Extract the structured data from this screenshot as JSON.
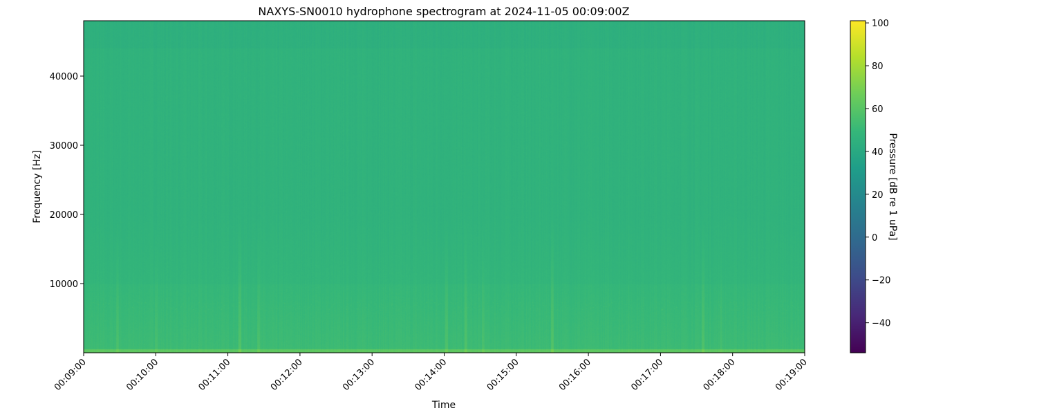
{
  "chart_data": {
    "type": "heatmap",
    "title": "NAXYS-SN0010 hydrophone spectrogram at 2024-11-05 00:09:00Z",
    "xlabel": "Time",
    "ylabel": "Frequency [Hz]",
    "xlim": [
      "00:09:00",
      "00:19:00"
    ],
    "ylim": [
      0,
      48000
    ],
    "xticks": [
      "00:09:00",
      "00:10:00",
      "00:11:00",
      "00:12:00",
      "00:13:00",
      "00:14:00",
      "00:15:00",
      "00:16:00",
      "00:17:00",
      "00:18:00",
      "00:19:00"
    ],
    "yticks": [
      10000,
      20000,
      30000,
      40000
    ],
    "colorbar": {
      "label": "Pressure [dB re 1 uPa]",
      "colormap": "viridis",
      "clim": [
        -54,
        101
      ],
      "ticks": [
        -40,
        -20,
        0,
        20,
        40,
        60,
        80,
        100
      ]
    },
    "approx_levels_db": {
      "background_high_freq": 46,
      "background_below_10000_hz": 52,
      "lowest_band_below_500_hz": 62
    },
    "transient_times": [
      "00:09:28",
      "00:10:00",
      "00:11:10",
      "00:11:25",
      "00:14:02",
      "00:14:18",
      "00:14:32",
      "00:15:30",
      "00:17:35",
      "00:17:50"
    ],
    "grid": false
  }
}
